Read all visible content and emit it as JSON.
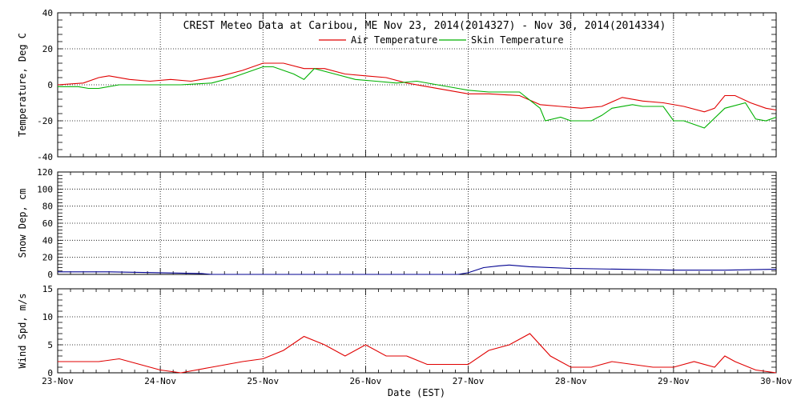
{
  "title": "CREST Meteo Data at Caribou, ME   Nov 23, 2014(2014327) - Nov 30, 2014(2014334)",
  "xlabel": "Date (EST)",
  "colors": {
    "air": "#e00000",
    "skin": "#00b000",
    "snow": "#000090",
    "wind": "#e00000",
    "axis": "#000000"
  },
  "chart_data": [
    {
      "type": "line",
      "ylabel": "Temperature, Deg C",
      "ylim": [
        -40,
        40
      ],
      "yticks": [
        40,
        20,
        0,
        -20,
        -40
      ],
      "xlim": [
        0,
        7
      ],
      "legend": "top-center",
      "grid": true,
      "series": [
        {
          "name": "Air Temperature",
          "x": [
            0,
            0.25,
            0.4,
            0.5,
            0.7,
            0.9,
            1.1,
            1.3,
            1.6,
            1.8,
            2.0,
            2.2,
            2.4,
            2.6,
            2.8,
            3.0,
            3.2,
            3.4,
            3.6,
            3.8,
            4.0,
            4.2,
            4.5,
            4.7,
            4.9,
            5.1,
            5.3,
            5.5,
            5.7,
            5.9,
            6.1,
            6.3,
            6.4,
            6.5,
            6.6,
            6.75,
            6.9,
            7.0
          ],
          "y": [
            0,
            1,
            4,
            5,
            3,
            2,
            3,
            2,
            5,
            8,
            12,
            12,
            9,
            9,
            6,
            5,
            4,
            1,
            -1,
            -3,
            -5,
            -5,
            -6,
            -11,
            -12,
            -13,
            -12,
            -7,
            -9,
            -10,
            -12,
            -15,
            -13,
            -6,
            -6,
            -10,
            -13,
            -14
          ]
        },
        {
          "name": "Skin Temperature",
          "x": [
            0,
            0.2,
            0.3,
            0.4,
            0.6,
            0.9,
            1.2,
            1.5,
            1.7,
            1.9,
            2.0,
            2.1,
            2.3,
            2.4,
            2.5,
            2.7,
            2.9,
            3.1,
            3.3,
            3.5,
            3.7,
            3.9,
            4.0,
            4.2,
            4.5,
            4.7,
            4.75,
            4.9,
            5.0,
            5.2,
            5.3,
            5.4,
            5.6,
            5.7,
            5.9,
            6.0,
            6.1,
            6.2,
            6.3,
            6.5,
            6.7,
            6.8,
            6.9,
            7.0
          ],
          "y": [
            -1,
            -1,
            -2,
            -2,
            0,
            0,
            0,
            1,
            4,
            8,
            10,
            10,
            6,
            3,
            9,
            6,
            3,
            2,
            1,
            2,
            0,
            -2,
            -3,
            -4,
            -4,
            -13,
            -20,
            -18,
            -20,
            -20,
            -17,
            -13,
            -11,
            -12,
            -12,
            -20,
            -20,
            -22,
            -24,
            -13,
            -10,
            -19,
            -20,
            -18
          ]
        }
      ]
    },
    {
      "type": "line",
      "ylabel": "Snow Dep, cm",
      "ylim": [
        0,
        120
      ],
      "yticks": [
        120,
        100,
        80,
        60,
        40,
        20,
        0
      ],
      "xlim": [
        0,
        7
      ],
      "grid": true,
      "series": [
        {
          "name": "",
          "x": [
            0,
            0.5,
            1.0,
            1.4,
            1.5,
            3.9,
            4.0,
            4.15,
            4.3,
            4.4,
            4.6,
            5.0,
            5.5,
            6.0,
            6.5,
            7.0
          ],
          "y": [
            3,
            3,
            2,
            1,
            0,
            0,
            2,
            8,
            10,
            11,
            9,
            7,
            6,
            5,
            5,
            6
          ]
        }
      ]
    },
    {
      "type": "line",
      "ylabel": "Wind Spd, m/s",
      "ylim": [
        0,
        15
      ],
      "yticks": [
        15,
        10,
        5,
        0
      ],
      "xlim": [
        0,
        7
      ],
      "grid": true,
      "series": [
        {
          "name": "",
          "x": [
            0,
            0.2,
            0.4,
            0.6,
            0.8,
            1.0,
            1.2,
            1.5,
            1.8,
            2.0,
            2.2,
            2.4,
            2.6,
            2.8,
            3.0,
            3.2,
            3.4,
            3.6,
            3.8,
            4.0,
            4.2,
            4.4,
            4.6,
            4.8,
            5.0,
            5.2,
            5.4,
            5.6,
            5.8,
            6.0,
            6.2,
            6.4,
            6.5,
            6.6,
            6.8,
            7.0
          ],
          "y": [
            2,
            2,
            2,
            2.5,
            1.5,
            0.5,
            0,
            1,
            2,
            2.5,
            4,
            6.5,
            5,
            3,
            5,
            3,
            3,
            1.5,
            1.5,
            1.5,
            4,
            5,
            7,
            3,
            1,
            1,
            2,
            1.5,
            1,
            1,
            2,
            1,
            3,
            2,
            0.5,
            0
          ]
        }
      ]
    }
  ],
  "xticks": [
    "23-Nov",
    "24-Nov",
    "25-Nov",
    "26-Nov",
    "27-Nov",
    "28-Nov",
    "29-Nov",
    "30-Nov"
  ]
}
